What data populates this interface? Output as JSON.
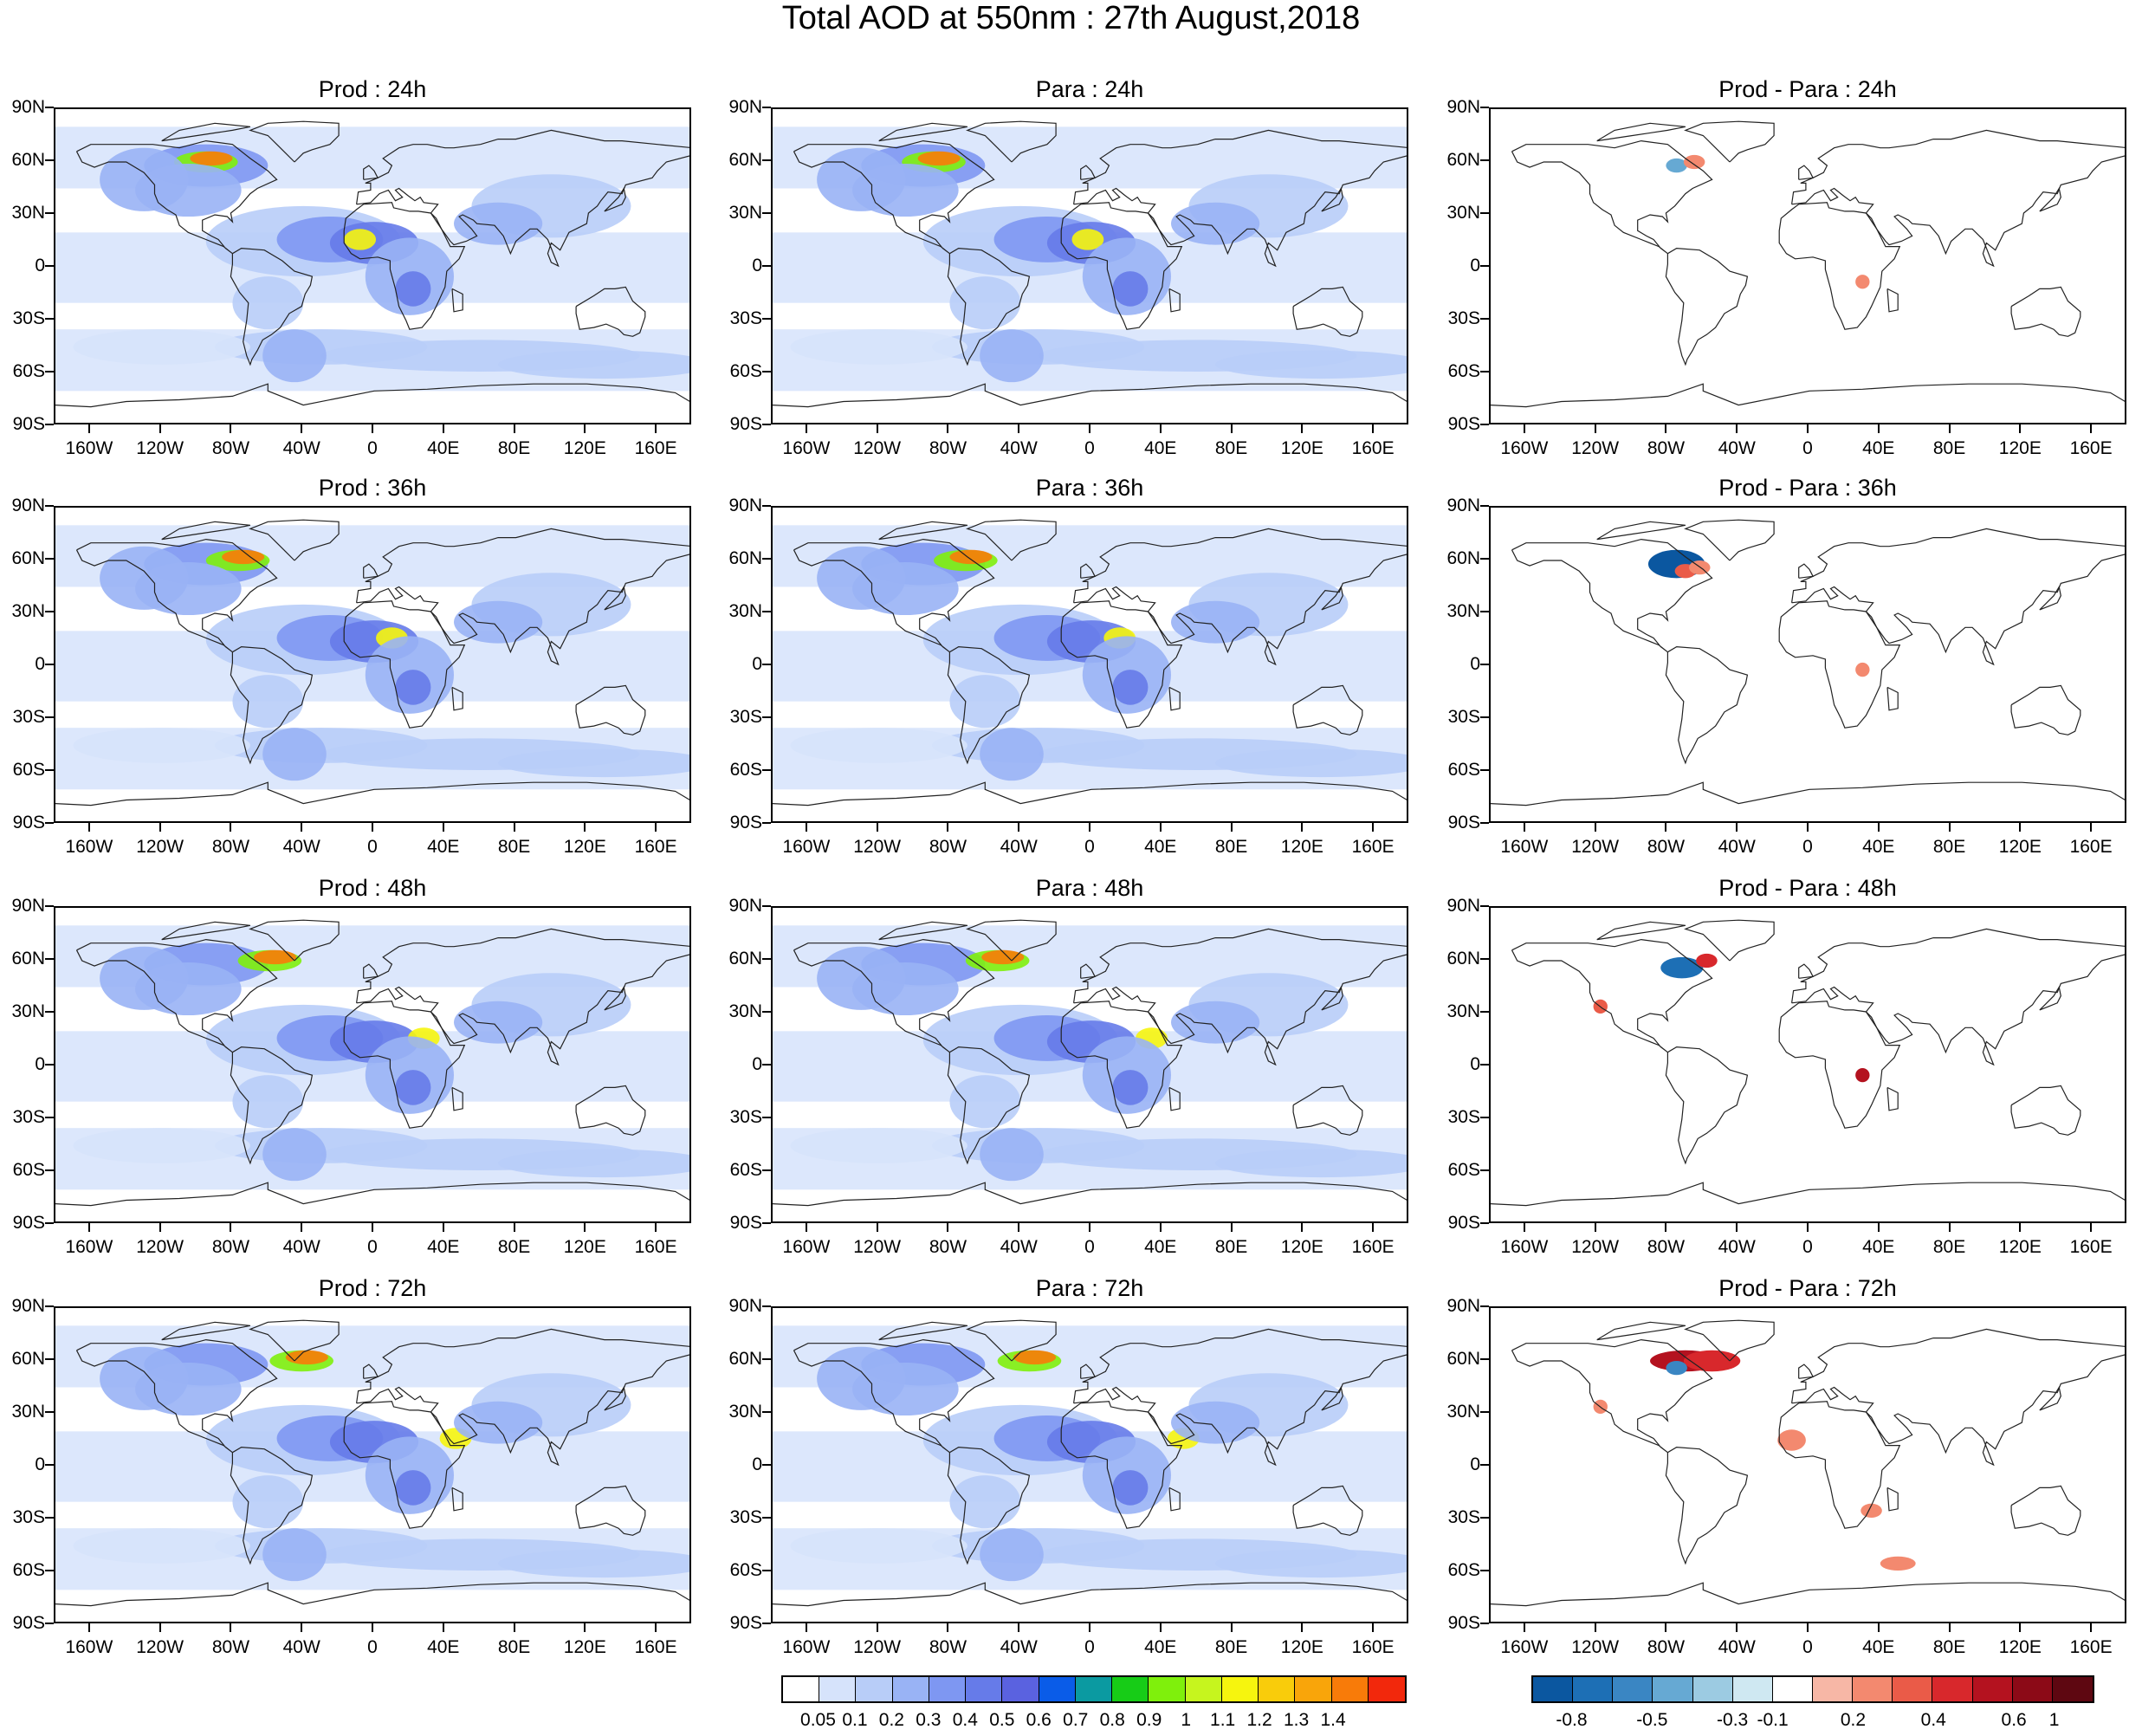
{
  "figure": {
    "title": "Total AOD at 550nm : 27th August,2018"
  },
  "axes": {
    "lat_labels": [
      "90N",
      "60N",
      "30N",
      "0",
      "30S",
      "60S",
      "90S"
    ],
    "lon_labels": [
      "160W",
      "120W",
      "80W",
      "40W",
      "0",
      "40E",
      "80E",
      "120E",
      "160E"
    ]
  },
  "panels": [
    {
      "title": "Prod : 24h",
      "kind": "aod"
    },
    {
      "title": "Para : 24h",
      "kind": "aod"
    },
    {
      "title": "Prod - Para : 24h",
      "kind": "diff"
    },
    {
      "title": "Prod : 36h",
      "kind": "aod"
    },
    {
      "title": "Para : 36h",
      "kind": "aod"
    },
    {
      "title": "Prod - Para : 36h",
      "kind": "diff"
    },
    {
      "title": "Prod : 48h",
      "kind": "aod"
    },
    {
      "title": "Para : 48h",
      "kind": "aod"
    },
    {
      "title": "Prod - Para : 48h",
      "kind": "diff"
    },
    {
      "title": "Prod : 72h",
      "kind": "aod"
    },
    {
      "title": "Para : 72h",
      "kind": "aod"
    },
    {
      "title": "Prod - Para : 72h",
      "kind": "diff"
    }
  ],
  "colorbars": {
    "aod": {
      "labels": [
        "0.05",
        "0.1",
        "0.2",
        "0.3",
        "0.4",
        "0.5",
        "0.6",
        "0.7",
        "0.8",
        "0.9",
        "1",
        "1.1",
        "1.2",
        "1.3",
        "1.4"
      ],
      "colors": [
        "#ffffff",
        "#d6e3fb",
        "#b8cdf8",
        "#99b3f5",
        "#7e97f2",
        "#667be9",
        "#5a62e0",
        "#0a5ce8",
        "#0b9aa1",
        "#17cc17",
        "#7ff00c",
        "#c6f51e",
        "#f6f50e",
        "#f9cc0b",
        "#f9a50a",
        "#f87b09",
        "#f2280c"
      ]
    },
    "diff": {
      "labels": [
        "-0.8",
        "-0.5",
        "-0.3",
        "-0.1",
        "0.2",
        "0.4",
        "0.6",
        "1"
      ],
      "colors": [
        "#0b57a0",
        "#1d6fb5",
        "#3a86c3",
        "#66a9d3",
        "#9ccbe2",
        "#cfe8f2",
        "#ffffff",
        "#f7b7a6",
        "#f3896f",
        "#ea5b48",
        "#d8282c",
        "#b4121f",
        "#8c0a17",
        "#5e0711"
      ]
    }
  },
  "map_features": {
    "aod": {
      "high_aod_regions": [
        "Canada wildfire plume (60N, 120W-60W)",
        "West Africa (15N, 20W-0)",
        "Central Africa (0-15S, 20E)"
      ],
      "background_band": "Southern Ocean 40S-60S"
    },
    "diff": {
      "nonzero_regions": [
        "Canada (55N, 80W-60W)",
        "Central Africa (10S, 30E)"
      ]
    }
  }
}
